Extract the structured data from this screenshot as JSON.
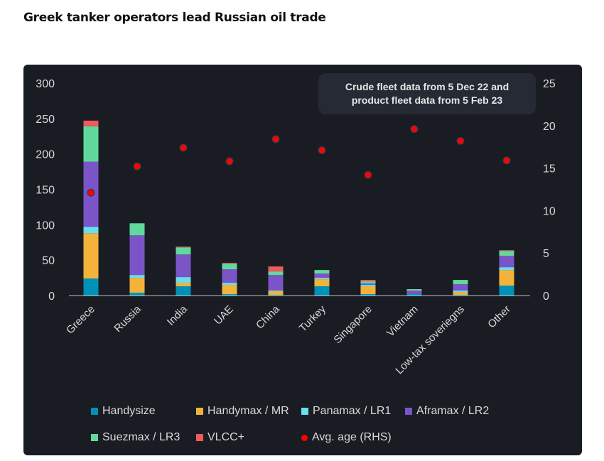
{
  "title": "Greek tanker operators lead Russian oil trade",
  "note": "Crude fleet data from 5 Dec 22 and product fleet data from 5 Feb 23",
  "chart_data": {
    "type": "bar",
    "stacked": true,
    "title": "Greek tanker operators lead Russian oil trade",
    "categories": [
      "Greece",
      "Russia",
      "India",
      "UAE",
      "China",
      "Turkey",
      "Singapore",
      "Vietnam",
      "Low-tax soveriegns",
      "Other"
    ],
    "y_left": {
      "range": [
        0,
        300
      ],
      "ticks": [
        0,
        50,
        100,
        150,
        200,
        250,
        300
      ]
    },
    "y_right": {
      "range": [
        0,
        25
      ],
      "ticks": [
        0,
        5,
        10,
        15,
        20,
        25
      ]
    },
    "grid": false,
    "legend_position": "bottom",
    "series": [
      {
        "name": "Handysize",
        "color": "#0091b8",
        "values": [
          24,
          4,
          13,
          2,
          1,
          13,
          2,
          2,
          1,
          14
        ]
      },
      {
        "name": "Handymax / MR",
        "color": "#f3b33a",
        "values": [
          64,
          21,
          5,
          13,
          5,
          10,
          11,
          0,
          4,
          22
        ]
      },
      {
        "name": "Panamax / LR1",
        "color": "#68dff0",
        "values": [
          9,
          4,
          8,
          3,
          1,
          2,
          2,
          0,
          2,
          4
        ]
      },
      {
        "name": "Aframax / LR2",
        "color": "#7b55c8",
        "values": [
          92,
          56,
          32,
          19,
          22,
          6,
          2,
          5,
          9,
          16
        ]
      },
      {
        "name": "Suezmax / LR3",
        "color": "#62d99c",
        "values": [
          50,
          17,
          10,
          8,
          5,
          5,
          3,
          2,
          6,
          7
        ]
      },
      {
        "name": "VLCC+",
        "color": "#ef5a5a",
        "values": [
          8,
          0,
          1,
          1,
          7,
          0,
          2,
          0,
          0,
          1
        ]
      }
    ],
    "line_series": {
      "name": "Avg. age (RHS)",
      "type": "scatter",
      "axis": "right",
      "color": "#ff0000",
      "values": [
        12.1,
        15.2,
        17.4,
        15.8,
        18.4,
        17.1,
        14.2,
        19.6,
        18.2,
        15.9
      ]
    }
  }
}
